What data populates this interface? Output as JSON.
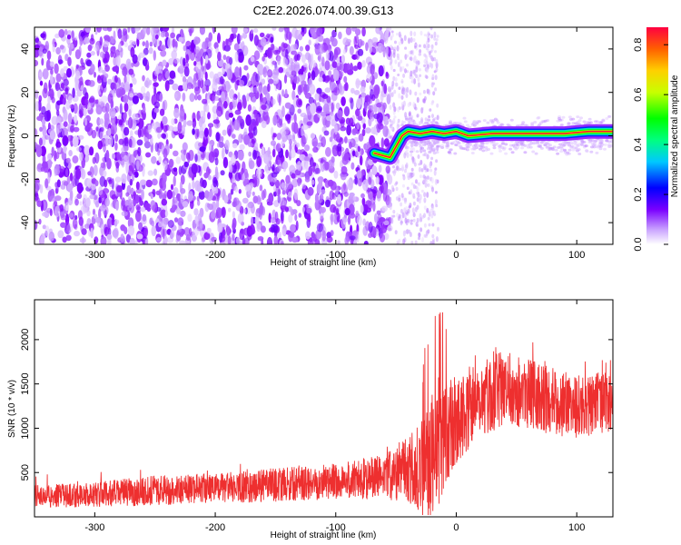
{
  "title": "C2E2.2026.074.00.39.G13",
  "chart_data": [
    {
      "type": "heatmap",
      "name": "spectrogram",
      "xlabel": "Height of straight line (km)",
      "ylabel": "Frequency (Hz)",
      "xlim": [
        -350,
        130
      ],
      "ylim": [
        -50,
        50
      ],
      "xticks": [
        -300,
        -200,
        -100,
        0,
        100
      ],
      "yticks": [
        -40,
        -20,
        0,
        20,
        40
      ],
      "colorbar": {
        "label": "Normalized spectral amplitude",
        "range": [
          0.0,
          0.87
        ],
        "ticks": [
          0.0,
          0.2,
          0.4,
          0.6,
          0.8
        ],
        "colormap": "rainbow"
      },
      "description_series": [
        {
          "name": "noise_region",
          "x_range": [
            -350,
            -55
          ],
          "freq_range": [
            -50,
            50
          ],
          "amplitude": 0.1
        },
        {
          "name": "transition_region",
          "x_range": [
            -55,
            -25
          ],
          "freq_range": [
            -50,
            50
          ],
          "amplitude": 0.05
        },
        {
          "name": "carrier_line",
          "x": [
            -68,
            -55,
            -52,
            -48,
            -45,
            -40,
            -30,
            -20,
            -10,
            0,
            10,
            30,
            50,
            70,
            90,
            110,
            130
          ],
          "y": [
            -8,
            -10,
            -7,
            -3,
            0,
            2,
            1,
            2,
            1,
            2,
            0,
            1,
            1,
            1,
            1,
            2,
            2
          ],
          "amplitude": [
            0.4,
            0.4,
            0.35,
            0.4,
            0.5,
            0.6,
            0.75,
            0.75,
            0.75,
            0.7,
            0.8,
            0.8,
            0.8,
            0.8,
            0.8,
            0.75,
            0.7
          ]
        }
      ]
    },
    {
      "type": "line",
      "name": "snr",
      "xlabel": "Height of straight line (km)",
      "ylabel": "SNR (10 * v/v)",
      "xlim": [
        -350,
        130
      ],
      "ylim": [
        0,
        2450
      ],
      "xticks": [
        -300,
        -200,
        -100,
        0,
        100
      ],
      "yticks": [
        500,
        1000,
        1500,
        2000
      ],
      "series": [
        {
          "name": "SNR",
          "color": "#ee2f2f",
          "x": [
            -350,
            -300,
            -250,
            -200,
            -150,
            -100,
            -60,
            -40,
            -30,
            -20,
            -10,
            0,
            20,
            40,
            60,
            80,
            100,
            130
          ],
          "mean": [
            230,
            250,
            300,
            320,
            360,
            400,
            450,
            550,
            500,
            700,
            900,
            1100,
            1350,
            1450,
            1400,
            1300,
            1250,
            1300
          ],
          "spread": [
            130,
            140,
            170,
            170,
            190,
            200,
            260,
            380,
            550,
            700,
            650,
            500,
            450,
            420,
            400,
            380,
            360,
            350
          ]
        }
      ]
    }
  ]
}
